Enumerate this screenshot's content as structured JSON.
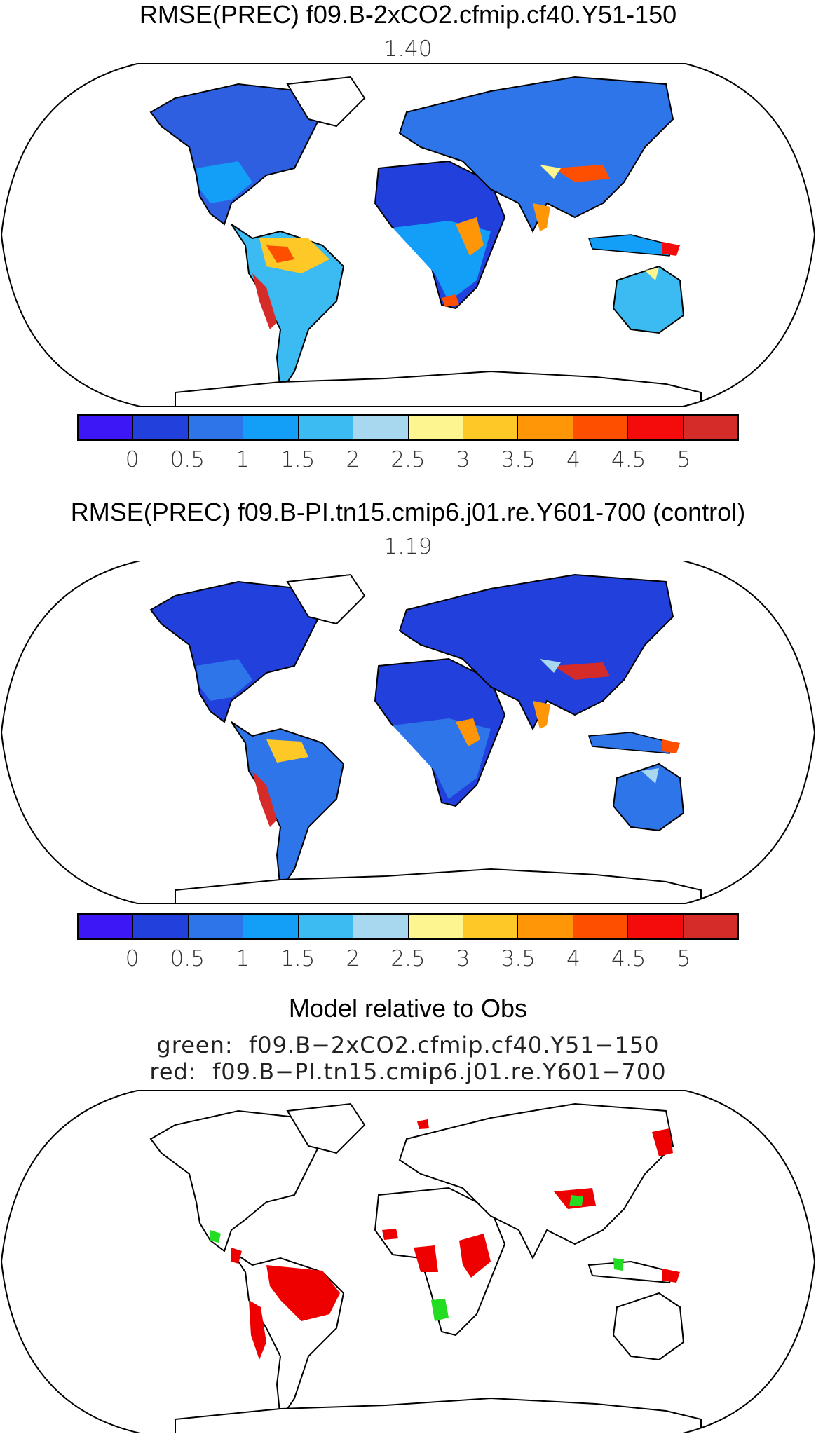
{
  "panel1": {
    "title": "RMSE(PREC) f09.B-2xCO2.cfmip.cf40.Y51-150",
    "value": "1.40"
  },
  "panel2": {
    "title": "RMSE(PREC) f09.B-PI.tn15.cmip6.j01.re.Y601-700 (control)",
    "value": "1.19"
  },
  "panel3": {
    "title": "Model relative to Obs",
    "line_green": "green:  f09.B−2xCO2.cfmip.cf40.Y51−150",
    "line_red": "red:  f09.B−PI.tn15.cmip6.j01.re.Y601−700"
  },
  "colorbar": {
    "colors": [
      "#3d17f5",
      "#2240dc",
      "#2e75ea",
      "#139ef7",
      "#3cbaf2",
      "#a7d8f0",
      "#fdf58f",
      "#fec927",
      "#fe9607",
      "#fe4f00",
      "#f40b0b",
      "#d52b29"
    ],
    "tick_labels": [
      "0",
      "0.5",
      "1",
      "1.5",
      "2",
      "2.5",
      "3",
      "3.5",
      "4",
      "4.5",
      "5"
    ]
  },
  "legend_colors": {
    "green": "#22dd22",
    "red": "#ee0000"
  }
}
